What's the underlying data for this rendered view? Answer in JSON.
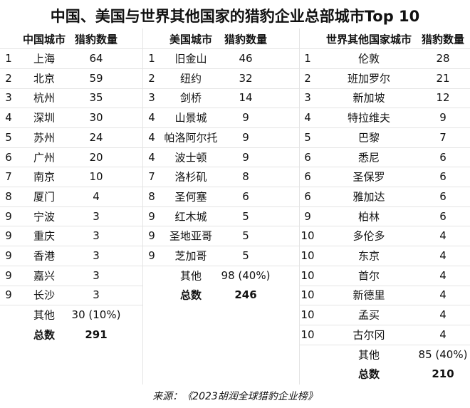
{
  "title": "中国、美国与世界其他国家的猎豹企业总部城市Top 10",
  "tables": [
    {
      "headers": [
        "中国城市",
        "猎豹数量"
      ],
      "rows": [
        [
          1,
          "上海",
          64
        ],
        [
          2,
          "北京",
          59
        ],
        [
          3,
          "杭州",
          35
        ],
        [
          4,
          "深圳",
          30
        ],
        [
          5,
          "苏州",
          24
        ],
        [
          6,
          "广州",
          20
        ],
        [
          7,
          "南京",
          10
        ],
        [
          8,
          "厦门",
          4
        ],
        [
          9,
          "宁波",
          3
        ],
        [
          9,
          "重庆",
          3
        ],
        [
          9,
          "香港",
          3
        ],
        [
          9,
          "嘉兴",
          3
        ],
        [
          9,
          "长沙",
          3
        ]
      ],
      "other": [
        "其他",
        "30 (10%)"
      ],
      "total": [
        "总数",
        291
      ]
    },
    {
      "headers": [
        "美国城市",
        "猎豹数量"
      ],
      "rows": [
        [
          1,
          "旧金山",
          46
        ],
        [
          2,
          "纽约",
          32
        ],
        [
          3,
          "剑桥",
          14
        ],
        [
          4,
          "山景城",
          9
        ],
        [
          4,
          "帕洛阿尔托",
          9
        ],
        [
          4,
          "波士顿",
          9
        ],
        [
          7,
          "洛杉矶",
          8
        ],
        [
          8,
          "圣何塞",
          6
        ],
        [
          9,
          "红木城",
          5
        ],
        [
          9,
          "圣地亚哥",
          5
        ],
        [
          9,
          "芝加哥",
          5
        ]
      ],
      "other": [
        "其他",
        "98 (40%)"
      ],
      "total": [
        "总数",
        246
      ]
    },
    {
      "headers": [
        "世界其他国家城市",
        "猎豹数量"
      ],
      "rows": [
        [
          1,
          "伦敦",
          28
        ],
        [
          2,
          "班加罗尔",
          21
        ],
        [
          3,
          "新加坡",
          12
        ],
        [
          4,
          "特拉维夫",
          9
        ],
        [
          5,
          "巴黎",
          7
        ],
        [
          6,
          "悉尼",
          6
        ],
        [
          6,
          "圣保罗",
          6
        ],
        [
          6,
          "雅加达",
          6
        ],
        [
          9,
          "柏林",
          6
        ],
        [
          10,
          "多伦多",
          4
        ],
        [
          10,
          "东京",
          4
        ],
        [
          10,
          "首尔",
          4
        ],
        [
          10,
          "新德里",
          4
        ],
        [
          10,
          "孟买",
          4
        ],
        [
          10,
          "古尔冈",
          4
        ]
      ],
      "other": [
        "其他",
        "85 (40%)"
      ],
      "total": [
        "总数",
        210
      ]
    }
  ],
  "source": "来源：《2023胡润全球猎豹企业榜》"
}
